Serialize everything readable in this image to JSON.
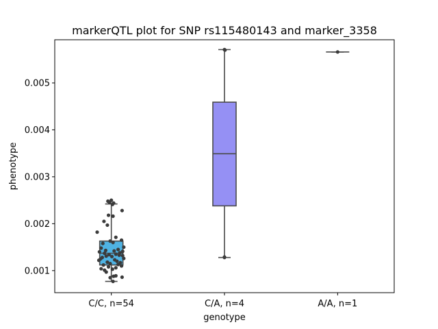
{
  "chart_data": {
    "type": "box",
    "title": "markerQTL plot for SNP rs115480143 and marker_3358",
    "xlabel": "genotype",
    "ylabel": "phenotype",
    "ylim": [
      0.00053,
      0.00592
    ],
    "yticks": [
      "0.001",
      "0.002",
      "0.003",
      "0.004",
      "0.005"
    ],
    "ytick_values": [
      0.001,
      0.002,
      0.003,
      0.004,
      0.005
    ],
    "grid": false,
    "legend": "none",
    "categories": [
      "C/C, n=54",
      "C/A, n=4",
      "A/A, n=1"
    ],
    "colors": [
      "#4fb3e3",
      "#9590f4",
      "#d1e8c9"
    ],
    "line_color": "#4a4a4a",
    "point_color": "#3b3b3b",
    "boxes": [
      {
        "q1": 0.00112,
        "median": 0.00137,
        "q3": 0.00163,
        "whisker_low": 0.00077,
        "whisker_high": 0.00242
      },
      {
        "q1": 0.00238,
        "median": 0.00349,
        "q3": 0.00459,
        "whisker_low": 0.00128,
        "whisker_high": 0.00571
      },
      {
        "q1": 0.00566,
        "median": 0.00566,
        "q3": 0.00566,
        "whisker_low": 0.00566,
        "whisker_high": 0.00566
      }
    ],
    "points": [
      [
        [
          -0.06,
          0.00248
        ],
        [
          0.0,
          0.0025
        ],
        [
          -0.03,
          0.00245
        ],
        [
          0.02,
          0.00241
        ],
        [
          0.04,
          0.00244
        ],
        [
          0.19,
          0.00228
        ],
        [
          -0.05,
          0.00218
        ],
        [
          0.03,
          0.00216
        ],
        [
          -0.13,
          0.00205
        ],
        [
          -0.07,
          0.00197
        ],
        [
          -0.25,
          0.00182
        ],
        [
          0.08,
          0.00171
        ],
        [
          0.18,
          0.00165
        ],
        [
          -0.02,
          0.00163
        ],
        [
          0.03,
          0.0016
        ],
        [
          -0.15,
          0.00158
        ],
        [
          0.22,
          0.0015
        ],
        [
          -0.18,
          0.00148
        ],
        [
          0.12,
          0.00145
        ],
        [
          -0.1,
          0.00143
        ],
        [
          0.05,
          0.00142
        ],
        [
          0.2,
          0.00141
        ],
        [
          -0.21,
          0.0014
        ],
        [
          0.15,
          0.00138
        ],
        [
          -0.12,
          0.00137
        ],
        [
          0.08,
          0.00135
        ],
        [
          -0.04,
          0.00134
        ],
        [
          0.14,
          0.00133
        ],
        [
          0.2,
          0.00132
        ],
        [
          -0.09,
          0.00131
        ],
        [
          0.01,
          0.0013
        ],
        [
          -0.16,
          0.00128
        ],
        [
          0.22,
          0.00126
        ],
        [
          -0.19,
          0.00125
        ],
        [
          0.06,
          0.00123
        ],
        [
          -0.22,
          0.00122
        ],
        [
          0.1,
          0.0012
        ],
        [
          -0.07,
          0.00118
        ],
        [
          0.16,
          0.00117
        ],
        [
          -0.02,
          0.00115
        ],
        [
          0.12,
          0.00113
        ],
        [
          -0.14,
          0.00112
        ],
        [
          0.18,
          0.0011
        ],
        [
          -0.05,
          0.00108
        ],
        [
          0.08,
          0.00106
        ],
        [
          -0.18,
          0.00104
        ],
        [
          0.02,
          0.00103
        ],
        [
          -0.09,
          0.00097
        ],
        [
          0.19,
          0.00086
        ],
        [
          0.04,
          0.00088
        ],
        [
          -0.02,
          0.00085
        ],
        [
          0.08,
          0.00089
        ],
        [
          0.03,
          0.00077
        ],
        [
          -0.12,
          0.00101
        ]
      ],
      [
        [
          0.0,
          0.00571
        ],
        [
          0.01,
          0.0057
        ],
        [
          0.0,
          0.00128
        ],
        [
          0.0,
          0.00129
        ]
      ],
      [
        [
          0.0,
          0.00566
        ]
      ]
    ]
  }
}
